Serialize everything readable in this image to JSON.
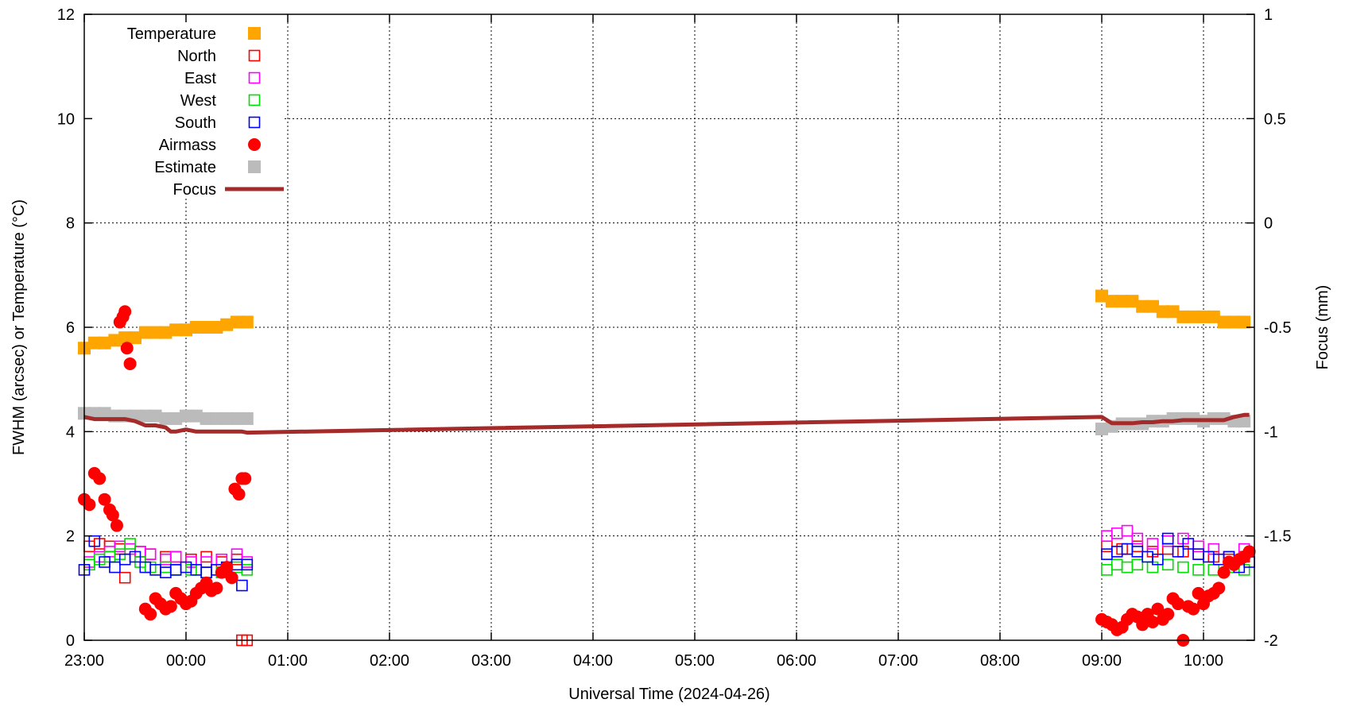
{
  "chart_data": {
    "type": "scatter",
    "title": "",
    "xlabel": "Universal Time (2024-04-26)",
    "ylabel": "FWHM (arcsec) or Temperature (°C)",
    "y2label": "Focus (mm)",
    "x_ticks": [
      "23:00",
      "00:00",
      "01:00",
      "02:00",
      "03:00",
      "04:00",
      "05:00",
      "06:00",
      "07:00",
      "08:00",
      "09:00",
      "10:00"
    ],
    "xlim": [
      -1.0,
      10.5
    ],
    "ylim": [
      0,
      12
    ],
    "y_ticks": [
      "0",
      "2",
      "4",
      "6",
      "8",
      "10",
      "12"
    ],
    "y2lim": [
      -2,
      1
    ],
    "y2_ticks": [
      "-2",
      "-1.5",
      "-1",
      "-0.5",
      "0",
      "0.5",
      "1"
    ],
    "grid": true,
    "legend_position": "top-left",
    "colors": {
      "temperature": "#ffa500",
      "north": "#ff0000",
      "east": "#ff00ff",
      "west": "#00dd00",
      "south": "#0000ff",
      "airmass": "#ff0000",
      "estimate": "#bbbbbb",
      "focus": "#a52a2a"
    },
    "series": [
      {
        "name": "Temperature",
        "marker": "filled-square",
        "axis": "left",
        "x": [
          -1.0,
          -0.9,
          -0.8,
          -0.7,
          -0.6,
          -0.5,
          -0.4,
          -0.3,
          -0.2,
          -0.1,
          0.0,
          0.1,
          0.2,
          0.3,
          0.4,
          0.5,
          0.6,
          9.0,
          9.1,
          9.2,
          9.3,
          9.4,
          9.5,
          9.6,
          9.7,
          9.8,
          9.9,
          10.0,
          10.1,
          10.2,
          10.3,
          10.4
        ],
        "y": [
          5.6,
          5.7,
          5.7,
          5.75,
          5.8,
          5.8,
          5.9,
          5.9,
          5.9,
          5.95,
          5.95,
          6.0,
          6.0,
          6.0,
          6.05,
          6.1,
          6.1,
          6.6,
          6.5,
          6.5,
          6.5,
          6.4,
          6.4,
          6.3,
          6.3,
          6.2,
          6.2,
          6.2,
          6.2,
          6.1,
          6.1,
          6.1
        ]
      },
      {
        "name": "North",
        "marker": "open-square",
        "axis": "left",
        "x": [
          -0.95,
          -0.85,
          -0.75,
          -0.65,
          -0.6,
          -0.45,
          -0.35,
          -0.2,
          -0.1,
          0.05,
          0.2,
          0.35,
          0.5,
          0.55,
          0.6,
          9.05,
          9.2,
          9.35,
          9.5,
          9.65,
          9.8,
          9.95,
          10.1,
          10.25,
          10.4
        ],
        "y": [
          1.8,
          1.85,
          1.8,
          1.75,
          1.2,
          1.7,
          1.65,
          1.6,
          1.6,
          1.55,
          1.6,
          1.5,
          1.55,
          0.0,
          0.0,
          1.8,
          1.75,
          1.8,
          1.7,
          1.75,
          1.7,
          1.65,
          1.6,
          1.55,
          1.6
        ]
      },
      {
        "name": "East",
        "marker": "open-square",
        "axis": "left",
        "x": [
          -0.95,
          -0.85,
          -0.75,
          -0.65,
          -0.55,
          -0.45,
          -0.35,
          -0.2,
          -0.1,
          0.05,
          0.2,
          0.35,
          0.5,
          0.6,
          9.05,
          9.15,
          9.25,
          9.35,
          9.5,
          9.65,
          9.8,
          9.95,
          10.1,
          10.25,
          10.4
        ],
        "y": [
          1.5,
          1.6,
          1.7,
          1.8,
          1.75,
          1.7,
          1.65,
          1.55,
          1.6,
          1.5,
          1.5,
          1.55,
          1.65,
          1.5,
          2.0,
          2.05,
          2.1,
          1.95,
          1.85,
          1.9,
          1.95,
          1.8,
          1.75,
          1.6,
          1.75
        ]
      },
      {
        "name": "West",
        "marker": "open-square",
        "axis": "left",
        "x": [
          -0.95,
          -0.85,
          -0.75,
          -0.65,
          -0.55,
          -0.45,
          -0.35,
          -0.2,
          -0.1,
          0.05,
          0.2,
          0.35,
          0.5,
          0.6,
          9.05,
          9.15,
          9.25,
          9.35,
          9.5,
          9.65,
          9.8,
          9.95,
          10.1,
          10.25,
          10.4
        ],
        "y": [
          1.45,
          1.55,
          1.6,
          1.65,
          1.85,
          1.5,
          1.4,
          1.4,
          1.35,
          1.35,
          1.3,
          1.3,
          1.4,
          1.35,
          1.35,
          1.45,
          1.4,
          1.45,
          1.4,
          1.45,
          1.4,
          1.35,
          1.35,
          1.4,
          1.35
        ]
      },
      {
        "name": "South",
        "marker": "open-square",
        "axis": "left",
        "x": [
          -1.0,
          -0.9,
          -0.8,
          -0.7,
          -0.6,
          -0.5,
          -0.4,
          -0.3,
          -0.2,
          -0.1,
          0.0,
          0.1,
          0.2,
          0.3,
          0.4,
          0.5,
          0.55,
          0.6,
          9.05,
          9.15,
          9.25,
          9.35,
          9.45,
          9.55,
          9.65,
          9.75,
          9.85,
          9.95,
          10.05,
          10.15,
          10.25,
          10.35,
          10.45
        ],
        "y": [
          1.35,
          1.9,
          1.5,
          1.4,
          1.55,
          1.6,
          1.4,
          1.35,
          1.3,
          1.35,
          1.4,
          1.35,
          1.3,
          1.35,
          1.4,
          1.45,
          1.05,
          1.45,
          1.65,
          1.7,
          1.75,
          1.7,
          1.6,
          1.55,
          1.95,
          1.7,
          1.85,
          1.65,
          1.6,
          1.55,
          1.6,
          1.4,
          1.5
        ]
      },
      {
        "name": "Airmass",
        "marker": "filled-circle",
        "axis": "left",
        "x": [
          -1.0,
          -0.95,
          -0.9,
          -0.85,
          -0.8,
          -0.75,
          -0.72,
          -0.68,
          -0.65,
          -0.62,
          -0.6,
          -0.58,
          -0.55,
          -0.4,
          -0.35,
          -0.3,
          -0.25,
          -0.2,
          -0.15,
          -0.1,
          -0.05,
          0.0,
          0.05,
          0.1,
          0.15,
          0.2,
          0.25,
          0.3,
          0.35,
          0.4,
          0.45,
          0.48,
          0.52,
          0.55,
          0.58,
          9.0,
          9.05,
          9.1,
          9.15,
          9.2,
          9.25,
          9.3,
          9.35,
          9.4,
          9.45,
          9.5,
          9.55,
          9.6,
          9.65,
          9.7,
          9.75,
          9.8,
          9.85,
          9.9,
          9.95,
          10.0,
          10.05,
          10.1,
          10.15,
          10.2,
          10.25,
          10.3,
          10.35,
          10.4,
          10.45
        ],
        "y": [
          2.7,
          2.6,
          3.2,
          3.1,
          2.7,
          2.5,
          2.4,
          2.2,
          6.1,
          6.2,
          6.3,
          5.6,
          5.3,
          0.6,
          0.5,
          0.8,
          0.7,
          0.6,
          0.65,
          0.9,
          0.8,
          0.7,
          0.75,
          0.9,
          1.0,
          1.1,
          0.95,
          1.0,
          1.3,
          1.4,
          1.2,
          2.9,
          2.8,
          3.1,
          3.1,
          0.4,
          0.35,
          0.3,
          0.2,
          0.25,
          0.4,
          0.5,
          0.45,
          0.3,
          0.5,
          0.35,
          0.6,
          0.4,
          0.5,
          0.8,
          0.7,
          0.0,
          0.65,
          0.6,
          0.9,
          0.7,
          0.85,
          0.9,
          1.0,
          1.3,
          1.5,
          1.45,
          1.55,
          1.6,
          1.7
        ]
      },
      {
        "name": "Estimate",
        "marker": "filled-square",
        "axis": "left",
        "x": [
          -1.0,
          -0.9,
          -0.8,
          -0.7,
          -0.6,
          -0.5,
          -0.4,
          -0.3,
          -0.2,
          -0.1,
          0.0,
          0.1,
          0.2,
          0.3,
          0.4,
          0.5,
          0.6,
          9.0,
          9.1,
          9.2,
          9.3,
          9.4,
          9.5,
          9.6,
          9.7,
          9.8,
          9.9,
          10.0,
          10.1,
          10.2,
          10.3,
          10.4
        ],
        "y": [
          4.35,
          4.35,
          4.35,
          4.3,
          4.3,
          4.3,
          4.3,
          4.3,
          4.25,
          4.25,
          4.3,
          4.3,
          4.25,
          4.25,
          4.25,
          4.25,
          4.25,
          4.05,
          4.1,
          4.15,
          4.15,
          4.15,
          4.2,
          4.2,
          4.25,
          4.25,
          4.25,
          4.2,
          4.25,
          4.25,
          4.2,
          4.2
        ]
      },
      {
        "name": "Focus",
        "marker": "line",
        "axis": "right",
        "x": [
          -1.0,
          -0.9,
          -0.6,
          -0.5,
          -0.4,
          -0.3,
          -0.2,
          -0.15,
          -0.1,
          0.0,
          0.1,
          0.2,
          0.3,
          0.4,
          0.5,
          0.55,
          0.6,
          9.0,
          9.1,
          9.2,
          9.3,
          9.4,
          9.5,
          9.6,
          9.7,
          9.8,
          9.9,
          10.0,
          10.1,
          10.2,
          10.3,
          10.4,
          10.45
        ],
        "y": [
          -0.93,
          -0.94,
          -0.94,
          -0.95,
          -0.97,
          -0.97,
          -0.98,
          -1.0,
          -1.0,
          -0.99,
          -1.0,
          -1.0,
          -1.0,
          -1.0,
          -1.0,
          -1.0,
          -1.005,
          -0.93,
          -0.96,
          -0.96,
          -0.96,
          -0.955,
          -0.955,
          -0.95,
          -0.95,
          -0.945,
          -0.945,
          -0.945,
          -0.945,
          -0.945,
          -0.93,
          -0.92,
          -0.92
        ]
      }
    ]
  }
}
